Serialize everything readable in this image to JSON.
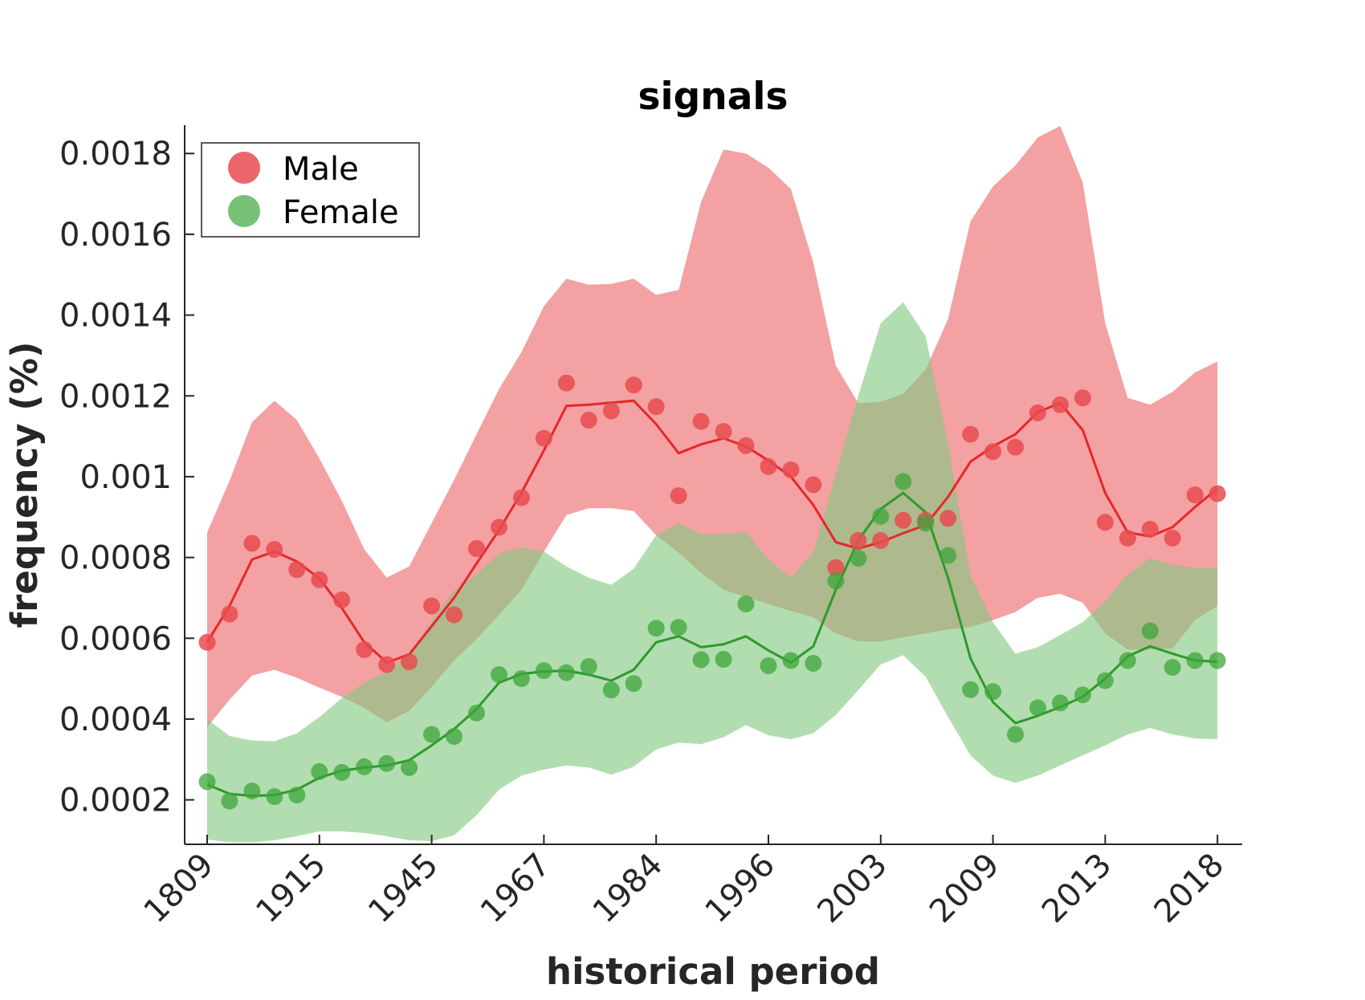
{
  "chart_data": {
    "type": "line",
    "title": "signals",
    "xlabel": "historical period",
    "ylabel": "frequency (%)",
    "ylim": [
      9e-05,
      0.00187
    ],
    "yticks": [
      0.0002,
      0.0004,
      0.0006,
      0.0008,
      0.001,
      0.0012,
      0.0014,
      0.0016,
      0.0018
    ],
    "ytick_labels": [
      "0.0002",
      "0.0004",
      "0.0006",
      "0.0008",
      "0.001",
      "0.0012",
      "0.0014",
      "0.0016",
      "0.0018"
    ],
    "xtick_labels": [
      "1809",
      "1915",
      "1945",
      "1967",
      "1984",
      "1996",
      "2003",
      "2009",
      "2013",
      "2018"
    ],
    "xtick_positions": [
      0,
      5,
      10,
      15,
      20,
      25,
      30,
      35,
      40,
      45
    ],
    "xlim": [
      -1,
      46.1
    ],
    "grid": false,
    "legend_position": "top-left",
    "series": [
      {
        "name": "Male",
        "color": "#e8262b",
        "marker_color": "#e84b50",
        "band_color": "#ed6e70",
        "points": [
          0.00059,
          0.00066,
          0.000835,
          0.00082,
          0.00077,
          0.000745,
          0.000695,
          0.000572,
          0.000535,
          0.000542,
          0.00068,
          0.000658,
          0.000822,
          0.000875,
          0.000948,
          0.001095,
          0.001232,
          0.00114,
          0.001163,
          0.001227,
          0.001173,
          0.000953,
          0.001137,
          0.001112,
          0.001077,
          0.001025,
          0.001017,
          0.00098,
          0.000775,
          0.000842,
          0.000842,
          0.000892,
          0.000892,
          0.000897,
          0.001105,
          0.001062,
          0.001073,
          0.001158,
          0.001178,
          0.001195,
          0.000887,
          0.000848,
          0.00087,
          0.000848,
          0.000955,
          0.000958
        ],
        "line": [
          0.00059,
          0.00068,
          0.000795,
          0.000815,
          0.00079,
          0.000748,
          0.000675,
          0.00059,
          0.00054,
          0.00056,
          0.00063,
          0.0007,
          0.000785,
          0.000868,
          0.00096,
          0.001065,
          0.001175,
          0.001178,
          0.001183,
          0.001188,
          0.00113,
          0.001058,
          0.00108,
          0.001095,
          0.001075,
          0.00104,
          0.001,
          0.00093,
          0.000838,
          0.000822,
          0.000838,
          0.00086,
          0.00088,
          0.00095,
          0.001037,
          0.001075,
          0.001105,
          0.00116,
          0.001182,
          0.001115,
          0.00096,
          0.000862,
          0.000852,
          0.000875,
          0.000925,
          0.00097
        ],
        "band_upper": [
          0.000862,
          0.00099,
          0.001135,
          0.001188,
          0.00114,
          0.001045,
          0.00094,
          0.00082,
          0.00075,
          0.000778,
          0.000885,
          0.000992,
          0.001105,
          0.001217,
          0.001308,
          0.001422,
          0.00149,
          0.001475,
          0.001477,
          0.00149,
          0.00145,
          0.001462,
          0.00168,
          0.00181,
          0.0018,
          0.001765,
          0.001712,
          0.00153,
          0.001275,
          0.001182,
          0.001185,
          0.001205,
          0.001265,
          0.00139,
          0.001632,
          0.001718,
          0.00177,
          0.00184,
          0.001868,
          0.001728,
          0.00138,
          0.001195,
          0.001178,
          0.00121,
          0.001258,
          0.001285
        ],
        "band_lower": [
          0.00038,
          0.000448,
          0.000508,
          0.000522,
          0.000502,
          0.000478,
          0.000455,
          0.000428,
          0.000392,
          0.00042,
          0.00048,
          0.000545,
          0.000598,
          0.000658,
          0.00072,
          0.000815,
          0.000905,
          0.000922,
          0.000922,
          0.000915,
          0.000855,
          0.000812,
          0.000762,
          0.00072,
          0.000702,
          0.000685,
          0.000668,
          0.000652,
          0.000612,
          0.000592,
          0.000592,
          0.000602,
          0.000612,
          0.000622,
          0.000628,
          0.000645,
          0.000665,
          0.0007,
          0.00071,
          0.000688,
          0.000612,
          0.000572,
          0.000572,
          0.000575,
          0.000645,
          0.00068
        ]
      },
      {
        "name": "Female",
        "color": "#2e9a2b",
        "marker_color": "#3ca63a",
        "band_color": "#82c880",
        "points": [
          0.000245,
          0.000197,
          0.000222,
          0.000208,
          0.000212,
          0.00027,
          0.000268,
          0.000282,
          0.00029,
          0.00028,
          0.000362,
          0.000357,
          0.000415,
          0.00051,
          0.0005,
          0.00052,
          0.000515,
          0.00053,
          0.000472,
          0.000488,
          0.000625,
          0.000627,
          0.000547,
          0.000548,
          0.000685,
          0.000532,
          0.000545,
          0.000538,
          0.000742,
          0.000798,
          0.000902,
          0.000988,
          0.000885,
          0.000805,
          0.000473,
          0.000468,
          0.000362,
          0.000428,
          0.00044,
          0.00046,
          0.000495,
          0.000545,
          0.000618,
          0.000528,
          0.000545,
          0.000545
        ],
        "line": [
          0.000238,
          0.000215,
          0.00021,
          0.000212,
          0.000225,
          0.000255,
          0.000272,
          0.00028,
          0.000285,
          0.000298,
          0.000335,
          0.000375,
          0.000425,
          0.00049,
          0.000512,
          0.000518,
          0.00052,
          0.00051,
          0.000495,
          0.000522,
          0.00059,
          0.000605,
          0.000578,
          0.000585,
          0.000605,
          0.00057,
          0.00054,
          0.00058,
          0.00072,
          0.000842,
          0.00092,
          0.00096,
          0.000912,
          0.00075,
          0.00055,
          0.000442,
          0.00039,
          0.000408,
          0.00043,
          0.000455,
          0.0005,
          0.000555,
          0.00058,
          0.000562,
          0.000545,
          0.000542
        ],
        "band_upper": [
          0.0004,
          0.000358,
          0.000347,
          0.000345,
          0.000365,
          0.000405,
          0.000452,
          0.00049,
          0.000518,
          0.00056,
          0.000642,
          0.000718,
          0.000758,
          0.00081,
          0.000825,
          0.000815,
          0.000778,
          0.00075,
          0.000732,
          0.000772,
          0.000855,
          0.000885,
          0.000858,
          0.000858,
          0.000862,
          0.000795,
          0.00075,
          0.000812,
          0.001005,
          0.0012,
          0.00138,
          0.001432,
          0.001348,
          0.00108,
          0.000755,
          0.00064,
          0.000562,
          0.000578,
          0.000608,
          0.00064,
          0.000692,
          0.000758,
          0.000798,
          0.000782,
          0.000775,
          0.000775
        ],
        "band_lower": [
          0.000102,
          9.5e-05,
          9.5e-05,
          0.0001,
          0.00011,
          0.000122,
          0.000122,
          0.000118,
          0.00011,
          0.0001,
          9.8e-05,
          0.000112,
          0.000162,
          0.000225,
          0.00026,
          0.000275,
          0.000285,
          0.00028,
          0.000262,
          0.000282,
          0.000325,
          0.000342,
          0.000338,
          0.000355,
          0.000385,
          0.00036,
          0.00035,
          0.000365,
          0.00041,
          0.000472,
          0.000535,
          0.000558,
          0.000505,
          0.000405,
          0.00031,
          0.00026,
          0.000242,
          0.00026,
          0.000285,
          0.00031,
          0.000335,
          0.000362,
          0.000378,
          0.000362,
          0.000352,
          0.00035
        ]
      }
    ]
  }
}
